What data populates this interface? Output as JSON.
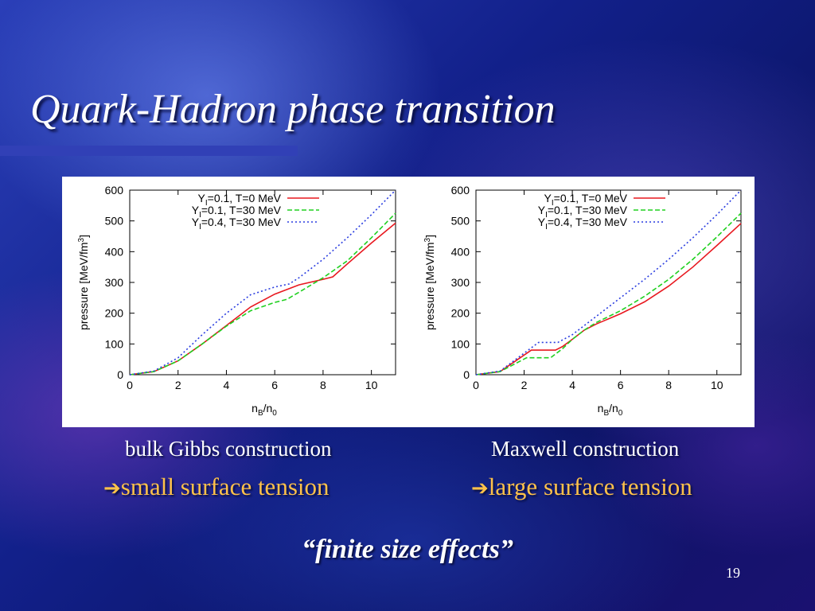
{
  "slide": {
    "title": "Quark-Hadron phase transition",
    "page_number": "19",
    "quote": "“finite size effects”"
  },
  "captions": {
    "left_title": "bulk Gibbs construction",
    "left_effect": "small surface tension",
    "right_title": "Maxwell construction",
    "right_effect": "large surface tension",
    "arrow_glyph": "➔"
  },
  "colors": {
    "title": "#ffffff",
    "effect_text": "#ffc24a",
    "series_red": "#e8181f",
    "series_green": "#20d020",
    "series_blue": "#2a3de0"
  },
  "chart_data": [
    {
      "type": "line",
      "xlabel": "nB/n0",
      "ylabel": "pressure [MeV/fm3]",
      "xlim": [
        0,
        11
      ],
      "ylim": [
        0,
        600
      ],
      "xticks": [
        0,
        2,
        4,
        6,
        8,
        10
      ],
      "yticks": [
        0,
        100,
        200,
        300,
        400,
        500,
        600
      ],
      "grid": false,
      "legend_position": "top",
      "series": [
        {
          "name": "YI=0.1, T=0 MeV",
          "color": "#e8181f",
          "dash": "solid",
          "x": [
            0,
            1,
            2,
            3,
            4,
            5,
            6,
            7,
            8,
            8.4,
            9,
            10,
            11
          ],
          "y": [
            0,
            10,
            45,
            100,
            160,
            220,
            262,
            292,
            310,
            318,
            360,
            428,
            493
          ]
        },
        {
          "name": "YI=0.1, T=30 MeV",
          "color": "#20d020",
          "dash": "dashed",
          "x": [
            0,
            1,
            2,
            3,
            4,
            5,
            6,
            6.5,
            7,
            8,
            9,
            10,
            11
          ],
          "y": [
            0,
            10,
            45,
            100,
            158,
            208,
            235,
            245,
            268,
            315,
            370,
            445,
            525
          ]
        },
        {
          "name": "YI=0.4, T=30 MeV",
          "color": "#2a3de0",
          "dash": "dotted",
          "x": [
            0,
            1,
            2,
            3,
            4,
            5,
            6,
            6.6,
            7,
            8,
            9,
            10,
            11
          ],
          "y": [
            0,
            12,
            55,
            130,
            200,
            260,
            285,
            295,
            315,
            375,
            445,
            520,
            608
          ]
        }
      ]
    },
    {
      "type": "line",
      "xlabel": "nB/n0",
      "ylabel": "pressure [MeV/fm3]",
      "xlim": [
        0,
        11
      ],
      "ylim": [
        0,
        600
      ],
      "xticks": [
        0,
        2,
        4,
        6,
        8,
        10
      ],
      "yticks": [
        0,
        100,
        200,
        300,
        400,
        500,
        600
      ],
      "grid": false,
      "legend_position": "top",
      "series": [
        {
          "name": "YI=0.1, T=0 MeV",
          "color": "#e8181f",
          "dash": "solid",
          "x": [
            0,
            1,
            2.3,
            3.3,
            3.6,
            4,
            4.5,
            5,
            6,
            7,
            8,
            9,
            10,
            11
          ],
          "y": [
            0,
            10,
            80,
            80,
            92,
            115,
            145,
            165,
            198,
            237,
            288,
            350,
            420,
            492
          ]
        },
        {
          "name": "YI=0.1, T=30 MeV",
          "color": "#20d020",
          "dash": "dashed",
          "x": [
            0,
            1,
            2.1,
            3.1,
            3.6,
            4,
            4.5,
            5,
            6,
            7,
            8,
            9,
            10,
            11
          ],
          "y": [
            0,
            10,
            55,
            55,
            85,
            115,
            145,
            170,
            208,
            255,
            310,
            375,
            448,
            525
          ]
        },
        {
          "name": "YI=0.4, T=30 MeV",
          "color": "#2a3de0",
          "dash": "dotted",
          "x": [
            0,
            1,
            2.6,
            3.4,
            4,
            5,
            6,
            7,
            8,
            9,
            10,
            11
          ],
          "y": [
            0,
            12,
            105,
            105,
            130,
            190,
            250,
            310,
            375,
            445,
            520,
            605
          ]
        }
      ]
    }
  ]
}
